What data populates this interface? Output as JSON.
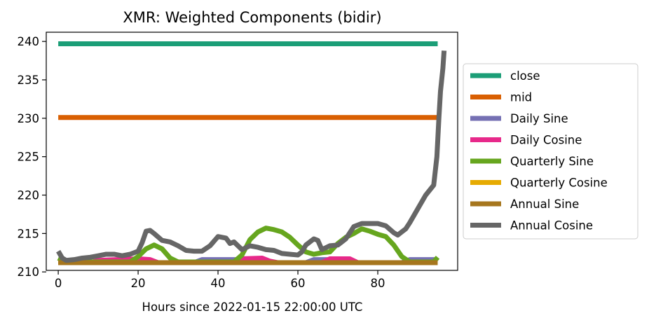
{
  "chart_data": {
    "type": "line",
    "title": "XMR: Weighted Components (bidir)",
    "xlabel": "Hours since 2022-01-15 22:00:00 UTC",
    "ylabel": "",
    "xlim": [
      -3,
      100
    ],
    "ylim": [
      210.2,
      241.2
    ],
    "xticks": [
      0,
      20,
      40,
      60,
      80
    ],
    "yticks": [
      210,
      215,
      220,
      225,
      230,
      235,
      240
    ],
    "grid": false,
    "legend_position": "outside-right",
    "series": [
      {
        "name": "close",
        "color": "#1b9e77",
        "points": [
          [
            0,
            239.7
          ],
          [
            95,
            239.7
          ]
        ]
      },
      {
        "name": "mid",
        "color": "#d95f02",
        "points": [
          [
            0,
            230.1
          ],
          [
            95,
            230.1
          ]
        ]
      },
      {
        "name": "Daily Sine",
        "color": "#7570b3",
        "points": [
          [
            0,
            211.2
          ],
          [
            10,
            211.2
          ],
          [
            12,
            211.5
          ],
          [
            15,
            211.5
          ],
          [
            17,
            211.2
          ],
          [
            34,
            211.2
          ],
          [
            36,
            211.6
          ],
          [
            46,
            211.6
          ],
          [
            48,
            211.2
          ],
          [
            62,
            211.2
          ],
          [
            64,
            211.6
          ],
          [
            68,
            211.6
          ],
          [
            70,
            211.2
          ],
          [
            86,
            211.2
          ],
          [
            88,
            211.6
          ],
          [
            95,
            211.6
          ]
        ]
      },
      {
        "name": "Daily Cosine",
        "color": "#e7298a",
        "points": [
          [
            0,
            211.2
          ],
          [
            8,
            211.2
          ],
          [
            10,
            211.5
          ],
          [
            20,
            211.7
          ],
          [
            23,
            211.6
          ],
          [
            25,
            211.2
          ],
          [
            44,
            211.2
          ],
          [
            46,
            211.7
          ],
          [
            51,
            211.8
          ],
          [
            53,
            211.4
          ],
          [
            55,
            211.2
          ],
          [
            66,
            211.2
          ],
          [
            68,
            211.7
          ],
          [
            73,
            211.7
          ],
          [
            75,
            211.2
          ],
          [
            95,
            211.2
          ]
        ]
      },
      {
        "name": "Quarterly Sine",
        "color": "#66a61e",
        "points": [
          [
            0,
            211.8
          ],
          [
            2,
            211.3
          ],
          [
            18,
            211.3
          ],
          [
            20,
            212.0
          ],
          [
            22,
            213.0
          ],
          [
            24,
            213.5
          ],
          [
            26,
            213.0
          ],
          [
            28,
            211.8
          ],
          [
            30,
            211.3
          ],
          [
            44,
            211.3
          ],
          [
            46,
            212.2
          ],
          [
            48,
            214.2
          ],
          [
            50,
            215.2
          ],
          [
            52,
            215.7
          ],
          [
            54,
            215.5
          ],
          [
            56,
            215.2
          ],
          [
            58,
            214.5
          ],
          [
            60,
            213.5
          ],
          [
            62,
            212.6
          ],
          [
            64,
            212.3
          ],
          [
            66,
            212.5
          ],
          [
            68,
            212.6
          ],
          [
            70,
            213.7
          ],
          [
            72,
            214.5
          ],
          [
            74,
            215.0
          ],
          [
            76,
            215.6
          ],
          [
            78,
            215.3
          ],
          [
            80,
            214.9
          ],
          [
            82,
            214.6
          ],
          [
            84,
            213.5
          ],
          [
            86,
            212.0
          ],
          [
            88,
            211.3
          ],
          [
            94,
            211.3
          ],
          [
            95,
            211.9
          ]
        ]
      },
      {
        "name": "Quarterly Cosine",
        "color": "#e6ab02",
        "points": [
          [
            0,
            211.2
          ],
          [
            95,
            211.2
          ]
        ]
      },
      {
        "name": "Annual Sine",
        "color": "#a6761d",
        "points": [
          [
            0,
            211.2
          ],
          [
            95,
            211.2
          ]
        ]
      },
      {
        "name": "Annual Cosine",
        "color": "#666666",
        "points": [
          [
            0,
            212.7
          ],
          [
            1,
            211.8
          ],
          [
            2,
            211.5
          ],
          [
            4,
            211.6
          ],
          [
            6,
            211.8
          ],
          [
            8,
            211.9
          ],
          [
            10,
            212.1
          ],
          [
            12,
            212.3
          ],
          [
            14,
            212.3
          ],
          [
            16,
            212.1
          ],
          [
            18,
            212.3
          ],
          [
            20,
            212.7
          ],
          [
            21,
            213.8
          ],
          [
            22,
            215.3
          ],
          [
            23,
            215.4
          ],
          [
            24,
            215.0
          ],
          [
            26,
            214.1
          ],
          [
            28,
            213.9
          ],
          [
            30,
            213.4
          ],
          [
            32,
            212.8
          ],
          [
            34,
            212.7
          ],
          [
            36,
            212.7
          ],
          [
            38,
            213.4
          ],
          [
            40,
            214.6
          ],
          [
            42,
            214.4
          ],
          [
            43,
            213.7
          ],
          [
            44,
            213.9
          ],
          [
            46,
            212.9
          ],
          [
            48,
            213.4
          ],
          [
            50,
            213.2
          ],
          [
            52,
            212.9
          ],
          [
            54,
            212.8
          ],
          [
            56,
            212.4
          ],
          [
            58,
            212.3
          ],
          [
            60,
            212.2
          ],
          [
            61,
            212.6
          ],
          [
            62,
            213.5
          ],
          [
            64,
            214.3
          ],
          [
            65,
            214.1
          ],
          [
            66,
            212.9
          ],
          [
            68,
            213.4
          ],
          [
            70,
            213.5
          ],
          [
            72,
            214.3
          ],
          [
            74,
            215.9
          ],
          [
            76,
            216.3
          ],
          [
            78,
            216.3
          ],
          [
            80,
            216.3
          ],
          [
            82,
            216.0
          ],
          [
            84,
            215.1
          ],
          [
            85,
            214.8
          ],
          [
            86,
            215.2
          ],
          [
            87,
            215.6
          ],
          [
            88,
            216.4
          ],
          [
            90,
            218.2
          ],
          [
            92,
            220.0
          ],
          [
            94,
            221.3
          ],
          [
            94.8,
            225.0
          ],
          [
            95.3,
            230.0
          ],
          [
            95.7,
            233.5
          ],
          [
            96.3,
            236.5
          ],
          [
            96.6,
            238.8
          ]
        ]
      }
    ]
  }
}
